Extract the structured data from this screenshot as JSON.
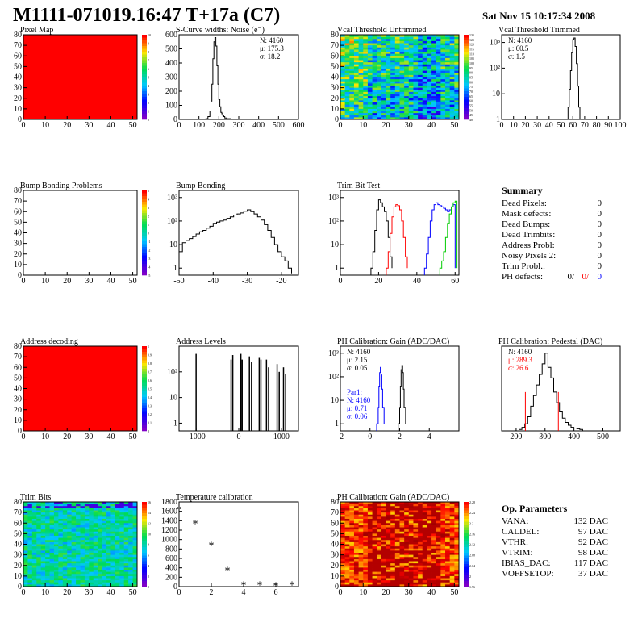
{
  "header": {
    "title": "M1111-071019.16:47 T+17a (C7)",
    "datetime": "Sat Nov 15 10:17:34 2008"
  },
  "colors": {
    "black": "#000000",
    "red": "#ff0000",
    "blue": "#0000ff",
    "green": "#00cc00",
    "background": "#ffffff"
  },
  "chart_data": [
    {
      "id": "pixel_map",
      "type": "heatmap",
      "title": "Pixel Map",
      "xlim": [
        0,
        52
      ],
      "ylim": [
        0,
        80
      ],
      "xticks": [
        0,
        10,
        20,
        30,
        40,
        50
      ],
      "yticks": [
        0,
        10,
        20,
        30,
        40,
        50,
        60,
        70,
        80
      ],
      "fill": "uniform",
      "fill_color": "#ff0000",
      "z_range": [
        0,
        10
      ],
      "palette_ticks": [
        "10",
        "9",
        "8",
        "7",
        "6",
        "5",
        "4",
        "3",
        "2",
        "1",
        "0"
      ]
    },
    {
      "id": "scurve_noise",
      "type": "line",
      "title": "S-Curve widths: Noise (e⁻)",
      "xlim": [
        0,
        600
      ],
      "ylim": [
        0,
        600
      ],
      "xticks": [
        0,
        100,
        200,
        300,
        400,
        500,
        600
      ],
      "yticks": [
        0,
        100,
        200,
        300,
        400,
        500,
        600
      ],
      "stats": [
        "N: 4160",
        "μ: 175.3",
        "σ: 18.2"
      ],
      "series": [
        {
          "color": "#000000",
          "step": true,
          "x": [
            120,
            135,
            145,
            155,
            160,
            165,
            170,
            175,
            180,
            185,
            190,
            195,
            200,
            205,
            210,
            215,
            220,
            225,
            230,
            240,
            260,
            280
          ],
          "y": [
            0,
            5,
            20,
            60,
            130,
            250,
            430,
            550,
            580,
            520,
            380,
            250,
            140,
            90,
            50,
            40,
            25,
            20,
            10,
            5,
            2,
            0
          ]
        }
      ]
    },
    {
      "id": "vcal_untrimmed",
      "type": "heatmap",
      "title": "Vcal Threshold Untrimmed",
      "xlim": [
        0,
        52
      ],
      "ylim": [
        0,
        80
      ],
      "xticks": [
        0,
        10,
        20,
        30,
        40,
        50
      ],
      "yticks": [
        0,
        10,
        20,
        30,
        40,
        50,
        60,
        70,
        80
      ],
      "fill": "noise",
      "z_range": [
        40,
        135
      ],
      "palette_ticks": [
        "135",
        "125",
        "120",
        "115",
        "110",
        "105",
        "100",
        "95",
        "90",
        "85",
        "80",
        "75",
        "70",
        "65",
        "60",
        "55",
        "50",
        "45",
        "40"
      ]
    },
    {
      "id": "vcal_trimmed",
      "type": "line",
      "title": "Vcal Threshold Trimmed",
      "xlim": [
        0,
        100
      ],
      "ylog": true,
      "ylim": [
        1,
        2000
      ],
      "xticks": [
        0,
        10,
        20,
        30,
        40,
        50,
        60,
        70,
        80,
        90,
        100
      ],
      "yticks": [
        1,
        10,
        100,
        1000
      ],
      "ytick_labels": [
        "1",
        "10",
        "10²",
        "10³"
      ],
      "stats": [
        "N: 4160",
        "μ: 60.5",
        "σ: 1.5"
      ],
      "series": [
        {
          "color": "#000000",
          "step": true,
          "x": [
            55,
            56,
            57,
            58,
            59,
            60,
            61,
            62,
            63,
            64,
            65,
            66
          ],
          "y": [
            1,
            3,
            15,
            80,
            400,
            1300,
            1500,
            700,
            150,
            20,
            3,
            1
          ]
        }
      ]
    },
    {
      "id": "bump_problems",
      "type": "heatmap",
      "title": "Bump Bonding Problems",
      "xlim": [
        0,
        52
      ],
      "ylim": [
        0,
        80
      ],
      "xticks": [
        0,
        10,
        20,
        30,
        40,
        50
      ],
      "yticks": [
        0,
        10,
        20,
        30,
        40,
        50,
        60,
        70,
        80
      ],
      "fill": "empty",
      "z_range": [
        -5,
        5
      ],
      "palette_ticks": [
        "5",
        "4",
        "3",
        "2",
        "1",
        "0",
        "-1",
        "-2",
        "-3",
        "-4",
        "-5"
      ]
    },
    {
      "id": "bump_bonding",
      "type": "line",
      "title": "Bump Bonding",
      "xlim": [
        -50,
        -15
      ],
      "ylog": true,
      "ylim": [
        0.5,
        2000
      ],
      "xticks": [
        -50,
        -40,
        -30,
        -20
      ],
      "yticks": [
        1,
        10,
        100,
        1000
      ],
      "ytick_labels": [
        "1",
        "10",
        "10²",
        "10³"
      ],
      "series": [
        {
          "color": "#000000",
          "step": true,
          "x": [
            -50,
            -49,
            -48,
            -47,
            -46,
            -45,
            -44,
            -43,
            -42,
            -41,
            -40,
            -39,
            -38,
            -37,
            -36,
            -35,
            -34,
            -33,
            -32,
            -31,
            -30,
            -29,
            -28,
            -27,
            -26,
            -25,
            -24,
            -23,
            -22,
            -21,
            -20,
            -19,
            -18,
            -17
          ],
          "y": [
            5,
            12,
            15,
            18,
            22,
            28,
            35,
            40,
            50,
            60,
            80,
            90,
            100,
            110,
            130,
            150,
            180,
            200,
            220,
            260,
            300,
            250,
            200,
            150,
            110,
            70,
            40,
            20,
            10,
            5,
            3,
            2,
            1,
            0.6
          ]
        }
      ]
    },
    {
      "id": "trim_bit_test",
      "type": "line",
      "title": "Trim Bit Test",
      "xlim": [
        0,
        62
      ],
      "ylog": true,
      "ylim": [
        0.5,
        2000
      ],
      "xticks": [
        0,
        20,
        40,
        60
      ],
      "yticks": [
        1,
        10,
        100,
        1000
      ],
      "ytick_labels": [
        "1",
        "10",
        "10²",
        "10³"
      ],
      "series": [
        {
          "color": "#000000",
          "step": true,
          "x": [
            16,
            17,
            18,
            19,
            20,
            21,
            22,
            23,
            24,
            25,
            26,
            27
          ],
          "y": [
            1,
            5,
            40,
            300,
            800,
            600,
            400,
            250,
            100,
            20,
            3,
            1
          ]
        },
        {
          "color": "#ff0000",
          "step": true,
          "x": [
            24,
            25,
            26,
            27,
            28,
            29,
            30,
            31,
            32,
            33,
            34,
            35
          ],
          "y": [
            1,
            5,
            30,
            150,
            400,
            500,
            450,
            300,
            100,
            20,
            3,
            1
          ]
        },
        {
          "color": "#0000ff",
          "step": true,
          "x": [
            44,
            45,
            46,
            47,
            48,
            49,
            50,
            51,
            52,
            53,
            54,
            55,
            56,
            57,
            58,
            59,
            60
          ],
          "y": [
            1,
            4,
            20,
            100,
            300,
            500,
            600,
            500,
            450,
            400,
            350,
            300,
            250,
            300,
            400,
            500,
            1
          ]
        },
        {
          "color": "#00cc00",
          "step": true,
          "x": [
            52,
            53,
            54,
            55,
            56,
            57,
            58,
            59,
            60,
            61
          ],
          "y": [
            1,
            2,
            5,
            20,
            80,
            200,
            400,
            600,
            700,
            1
          ]
        }
      ]
    },
    {
      "id": "address_decoding",
      "type": "heatmap",
      "title": "Address decoding",
      "xlim": [
        0,
        52
      ],
      "ylim": [
        0,
        80
      ],
      "xticks": [
        0,
        10,
        20,
        30,
        40,
        50
      ],
      "yticks": [
        0,
        10,
        20,
        30,
        40,
        50,
        60,
        70,
        80
      ],
      "fill": "uniform",
      "fill_color": "#ff0000",
      "z_range": [
        0,
        1
      ],
      "palette_ticks": [
        "1",
        "0.9",
        "0.8",
        "0.7",
        "0.6",
        "0.5",
        "0.4",
        "0.3",
        "0.2",
        "0.1",
        "0"
      ]
    },
    {
      "id": "address_levels",
      "type": "line",
      "title": "Address Levels",
      "xlim": [
        -1400,
        1400
      ],
      "ylog": true,
      "ylim": [
        0.5,
        1000
      ],
      "xticks": [
        -1000,
        0,
        1000
      ],
      "yticks": [
        1,
        10,
        100
      ],
      "ytick_labels": [
        "1",
        "10",
        "10²"
      ],
      "series": [
        {
          "color": "#000000",
          "spikes": true,
          "x": [
            -1000,
            -180,
            -140,
            50,
            80,
            250,
            300,
            480,
            520,
            650,
            700,
            900,
            950,
            1050,
            1100
          ],
          "y": [
            500,
            300,
            450,
            500,
            300,
            400,
            250,
            350,
            300,
            300,
            150,
            200,
            100,
            150,
            80
          ]
        }
      ]
    },
    {
      "id": "ph_gain",
      "type": "line",
      "title": "PH Calibration: Gain (ADC/DAC)",
      "xlim": [
        -2,
        6
      ],
      "ylog": true,
      "ylim": [
        0.5,
        2000
      ],
      "xticks": [
        -2,
        0,
        2,
        4
      ],
      "yticks": [
        1,
        10,
        100,
        1000
      ],
      "ytick_labels": [
        "1",
        "10",
        "10²",
        "10³"
      ],
      "stats": [
        "N: 4160",
        "μ: 2.15",
        "σ: 0.05"
      ],
      "par_stats": [
        "Par1:",
        "N: 4160",
        "μ: 0.71",
        "σ: 0.06"
      ],
      "series": [
        {
          "color": "#000000",
          "step": true,
          "x": [
            1.9,
            2.0,
            2.05,
            2.1,
            2.15,
            2.2,
            2.25,
            2.3,
            2.4
          ],
          "y": [
            1,
            5,
            40,
            200,
            300,
            150,
            30,
            5,
            1
          ]
        },
        {
          "color": "#0000ff",
          "step": true,
          "x": [
            0.45,
            0.55,
            0.6,
            0.65,
            0.7,
            0.75,
            0.8,
            0.85,
            0.95
          ],
          "y": [
            1,
            5,
            40,
            150,
            250,
            120,
            30,
            5,
            1
          ]
        }
      ]
    },
    {
      "id": "ph_pedestal",
      "type": "line",
      "title": "PH Calibration: Pedestal (DAC)",
      "xlim": [
        150,
        560
      ],
      "ylim": [
        0,
        120
      ],
      "xticks": [
        200,
        300,
        400,
        500
      ],
      "yticks": [],
      "stats": [
        "N: 4160",
        "μ: 289.3",
        "σ: 26.6"
      ],
      "series": [
        {
          "color": "#000000",
          "step": true,
          "x": [
            200,
            210,
            220,
            230,
            240,
            250,
            260,
            270,
            280,
            290,
            300,
            310,
            320,
            330,
            340,
            350,
            360,
            370,
            380,
            390,
            400,
            410,
            420,
            430
          ],
          "y": [
            0,
            2,
            5,
            10,
            20,
            35,
            50,
            65,
            80,
            95,
            110,
            90,
            75,
            55,
            40,
            28,
            18,
            12,
            8,
            5,
            4,
            3,
            2,
            0
          ]
        }
      ],
      "markers": [
        {
          "color": "#ff0000",
          "x": [
            232,
            346
          ],
          "y": 55
        }
      ]
    },
    {
      "id": "trim_bits",
      "type": "heatmap",
      "title": "Trim Bits",
      "xlim": [
        0,
        52
      ],
      "ylim": [
        0,
        80
      ],
      "xticks": [
        0,
        10,
        20,
        30,
        40,
        50
      ],
      "yticks": [
        0,
        10,
        20,
        30,
        40,
        50,
        60,
        70,
        80
      ],
      "fill": "noise_low",
      "z_range": [
        0,
        16
      ],
      "palette_ticks": [
        "16",
        "14",
        "12",
        "10",
        "8",
        "6",
        "4",
        "2",
        "0"
      ]
    },
    {
      "id": "temperature",
      "type": "scatter",
      "title": "Temperature calibration",
      "xlim": [
        0,
        7.4
      ],
      "ylim": [
        0,
        1800
      ],
      "xticks": [
        0,
        2,
        4,
        6
      ],
      "yticks": [
        0,
        200,
        400,
        600,
        800,
        1000,
        1200,
        1400,
        1600,
        1800
      ],
      "marker": "*",
      "x": [
        0,
        1,
        2,
        3,
        4,
        5,
        6,
        7
      ],
      "y": [
        1650,
        1350,
        880,
        350,
        40,
        40,
        30,
        40
      ]
    },
    {
      "id": "ph_gain_map",
      "type": "heatmap",
      "title": "PH Calibration: Gain (ADC/DAC)",
      "xlim": [
        0,
        52
      ],
      "ylim": [
        0,
        80
      ],
      "xticks": [
        0,
        10,
        20,
        30,
        40,
        50
      ],
      "yticks": [
        0,
        10,
        20,
        30,
        40,
        50,
        60,
        70,
        80
      ],
      "fill": "noise_high",
      "z_range": [
        1.96,
        2.28
      ],
      "palette_ticks": [
        "2.28",
        "2.24",
        "2.2",
        "2.16",
        "2.12",
        "2.08",
        "2.04",
        "2",
        "1.96"
      ]
    }
  ],
  "summary": {
    "title": "Summary",
    "rows": [
      {
        "label": "Dead Pixels:",
        "value": "0"
      },
      {
        "label": "Mask defects:",
        "value": "0"
      },
      {
        "label": "Dead Bumps:",
        "value": "0"
      },
      {
        "label": "Dead Trimbits:",
        "value": "0"
      },
      {
        "label": "Address Probl:",
        "value": "0"
      },
      {
        "label": "Noisy Pixels 2:",
        "value": "0"
      },
      {
        "label": "Trim Probl.:",
        "value": "0"
      }
    ],
    "ph_defects": {
      "label": "PH defects:",
      "v1": "0/",
      "v2": "0/",
      "v3": "0"
    }
  },
  "op_parameters": {
    "title": "Op. Parameters",
    "rows": [
      {
        "label": "VANA:",
        "value": "132 DAC"
      },
      {
        "label": "CALDEL:",
        "value": "97 DAC"
      },
      {
        "label": "VTHR:",
        "value": "92 DAC"
      },
      {
        "label": "VTRIM:",
        "value": "98 DAC"
      },
      {
        "label": "IBIAS_DAC:",
        "value": "117 DAC"
      },
      {
        "label": "VOFFSETOP:",
        "value": "37 DAC"
      }
    ]
  }
}
